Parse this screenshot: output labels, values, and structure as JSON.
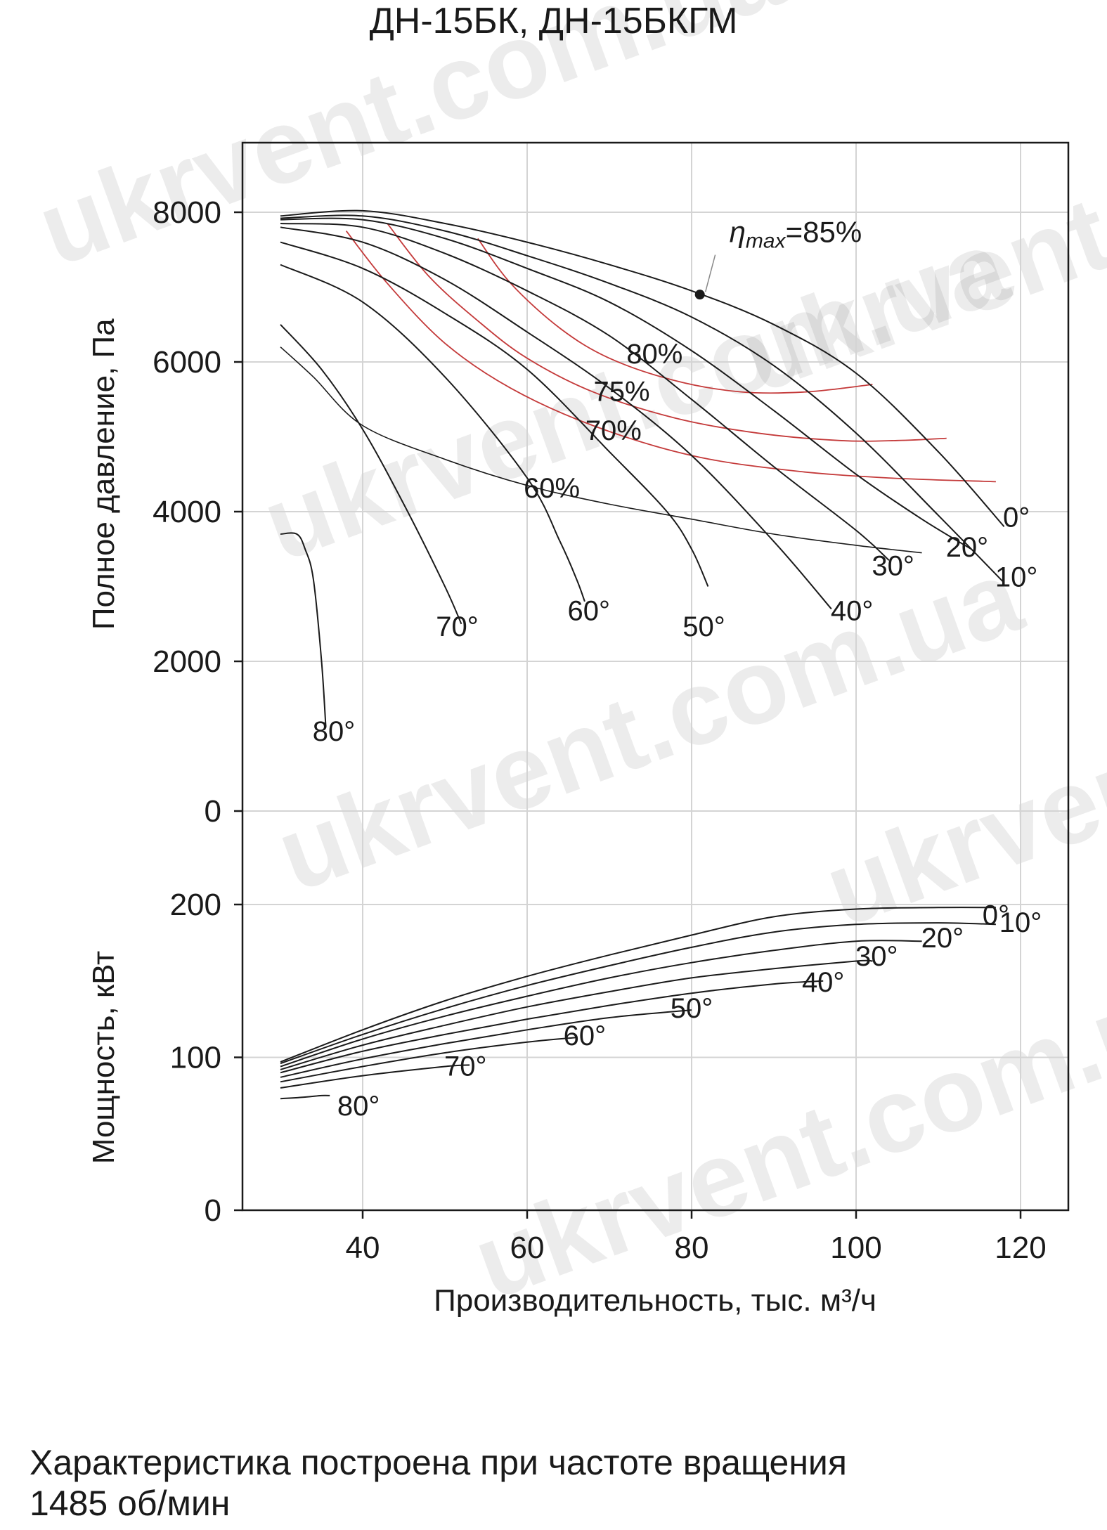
{
  "title": "ДН-15БК, ДН-15БКГМ",
  "caption": {
    "line1": "Характеристика построена при частоте вращения",
    "line2": "1485 об/мин"
  },
  "watermark": "ukrvent.com.ua",
  "colors": {
    "curve": "#1a1a1a",
    "efficiency": "#c43a3a",
    "grid": "#d4d4d4",
    "axis": "#1a1a1a"
  },
  "chart_data": {
    "type": "line",
    "title": "ДН-15БК, ДН-15БКГМ",
    "xlabel": "Производительность, тыс. м³/ч",
    "xlim": [
      27,
      122
    ],
    "xticks": [
      40,
      60,
      80,
      100,
      120
    ],
    "grid": true,
    "panels": [
      {
        "id": "pressure",
        "ylabel": "Полное давление, Па",
        "ylim": [
          0,
          9000
        ],
        "yticks": [
          0,
          2000,
          4000,
          6000,
          8000
        ],
        "series": [
          {
            "name": "0°",
            "label_at": [
              119.5,
              3800
            ],
            "x": [
              30,
              40,
              50,
              60,
              70,
              80,
              90,
              100,
              110,
              118
            ],
            "y": [
              7950,
              8020,
              7850,
              7600,
              7300,
              6950,
              6500,
              5850,
              4800,
              3800
            ]
          },
          {
            "name": "10°",
            "label_at": [
              119.5,
              3000
            ],
            "x": [
              30,
              40,
              50,
              60,
              70,
              80,
              90,
              100,
              110,
              118
            ],
            "y": [
              7920,
              7950,
              7750,
              7420,
              7050,
              6600,
              5950,
              5050,
              3950,
              3050
            ]
          },
          {
            "name": "20°",
            "label_at": [
              113.5,
              3400
            ],
            "x": [
              30,
              40,
              50,
              60,
              70,
              80,
              90,
              100,
              108,
              114
            ],
            "y": [
              7900,
              7900,
              7650,
              7250,
              6800,
              6150,
              5350,
              4500,
              3900,
              3500
            ]
          },
          {
            "name": "30°",
            "label_at": [
              104.5,
              3150
            ],
            "x": [
              30,
              40,
              50,
              60,
              70,
              80,
              90,
              100,
              104
            ],
            "y": [
              7850,
              7800,
              7450,
              6950,
              6350,
              5500,
              4600,
              3750,
              3350
            ]
          },
          {
            "name": "40°",
            "label_at": [
              99.5,
              2550
            ],
            "x": [
              30,
              40,
              50,
              60,
              70,
              80,
              90,
              97
            ],
            "y": [
              7800,
              7600,
              7100,
              6400,
              5650,
              4750,
              3600,
              2700
            ]
          },
          {
            "name": "50°",
            "label_at": [
              81.5,
              2340
            ],
            "x": [
              30,
              40,
              50,
              60,
              70,
              77,
              80,
              82
            ],
            "y": [
              7600,
              7250,
              6650,
              5900,
              4800,
              4000,
              3500,
              3000
            ]
          },
          {
            "name": "60°",
            "label_at": [
              67.5,
              2550
            ],
            "x": [
              30,
              40,
              50,
              60,
              64,
              66,
              67
            ],
            "y": [
              7300,
              6800,
              5800,
              4450,
              3600,
              3100,
              2800
            ]
          },
          {
            "name": "70°",
            "label_at": [
              51.5,
              2340
            ],
            "x": [
              30,
              35,
              40,
              45,
              50,
              52
            ],
            "y": [
              6500,
              5900,
              5100,
              4100,
              3000,
              2500
            ]
          },
          {
            "name": "80°",
            "label_at": [
              36.5,
              940
            ],
            "x": [
              30,
              32,
              33,
              34,
              35,
              35.5
            ],
            "y": [
              3700,
              3700,
              3500,
              3100,
              2000,
              1150
            ]
          }
        ],
        "efficiency_curves": [
          {
            "name": "80%",
            "label_at": [
              75.5,
              5980
            ],
            "x": [
              54,
              58,
              64,
              70,
              78,
              86,
              94,
              102
            ],
            "y": [
              7650,
              7050,
              6450,
              6050,
              5750,
              5600,
              5600,
              5700
            ]
          },
          {
            "name": "75%",
            "label_at": [
              71.5,
              5480
            ],
            "x": [
              43,
              48,
              54,
              60,
              68,
              78,
              88,
              98,
              105,
              111
            ],
            "y": [
              7850,
              7150,
              6550,
              6050,
              5600,
              5250,
              5050,
              4950,
              4950,
              4980
            ]
          },
          {
            "name": "70%",
            "label_at": [
              70.5,
              4960
            ],
            "x": [
              38,
              43,
              50,
              58,
              68,
              80,
              92,
              104,
              117
            ],
            "y": [
              7750,
              7050,
              6250,
              5650,
              5150,
              4750,
              4550,
              4450,
              4400
            ]
          }
        ],
        "auxiliary_curves": [
          {
            "name": "60%",
            "label_at": [
              63.0,
              4190
            ],
            "x": [
              30,
              34,
              40,
              50,
              60,
              70,
              80,
              90,
              100,
              108
            ],
            "y": [
              6200,
              5800,
              5150,
              4700,
              4350,
              4100,
              3900,
              3700,
              3550,
              3450
            ]
          }
        ],
        "annotation": {
          "text": "=85%",
          "symbol": "η",
          "subscript": "max",
          "point": [
            81,
            6900
          ],
          "label_at": [
            88,
            7600
          ]
        }
      },
      {
        "id": "power",
        "ylabel": "Мощность, кВт",
        "ylim": [
          0,
          200
        ],
        "yticks": [
          0,
          100,
          200
        ],
        "series": [
          {
            "name": "0°",
            "label_at": [
              117,
              187
            ],
            "x": [
              30,
              40,
              50,
              60,
              70,
              80,
              90,
              100,
              110,
              117
            ],
            "y": [
              97,
              118,
              137,
              153,
              167,
              180,
              192,
              197,
              198,
              198
            ]
          },
          {
            "name": "10°",
            "label_at": [
              120,
              182
            ],
            "x": [
              30,
              40,
              50,
              60,
              70,
              80,
              90,
              100,
              110,
              117
            ],
            "y": [
              96,
              115,
              132,
              147,
              160,
              172,
              182,
              187,
              188,
              187
            ]
          },
          {
            "name": "20°",
            "label_at": [
              110.5,
              172
            ],
            "x": [
              30,
              40,
              50,
              60,
              70,
              80,
              90,
              100,
              108
            ],
            "y": [
              94,
              112,
              127,
              140,
              152,
              162,
              170,
              176,
              176
            ]
          },
          {
            "name": "30°",
            "label_at": [
              102.5,
              160
            ],
            "x": [
              30,
              40,
              50,
              60,
              70,
              80,
              90,
              100,
              102
            ],
            "y": [
              92,
              108,
              121,
              133,
              143,
              152,
              158,
              163,
              163
            ]
          },
          {
            "name": "40°",
            "label_at": [
              96,
              143
            ],
            "x": [
              30,
              40,
              50,
              60,
              70,
              80,
              90,
              96
            ],
            "y": [
              90,
              104,
              115,
              125,
              134,
              142,
              148,
              150
            ]
          },
          {
            "name": "50°",
            "label_at": [
              80,
              126
            ],
            "x": [
              30,
              40,
              50,
              60,
              70,
              80
            ],
            "y": [
              87,
              99,
              109,
              118,
              126,
              131
            ]
          },
          {
            "name": "60°",
            "label_at": [
              67,
              108
            ],
            "x": [
              30,
              40,
              50,
              60,
              66
            ],
            "y": [
              84,
              94,
              103,
              110,
              113
            ]
          },
          {
            "name": "70°",
            "label_at": [
              52.5,
              88
            ],
            "x": [
              30,
              40,
              50,
              53
            ],
            "y": [
              80,
              88,
              94,
              95
            ]
          },
          {
            "name": "80°",
            "label_at": [
              39.5,
              62
            ],
            "x": [
              30,
              33,
              35,
              36
            ],
            "y": [
              73,
              74,
              75,
              75
            ]
          }
        ]
      }
    ]
  }
}
